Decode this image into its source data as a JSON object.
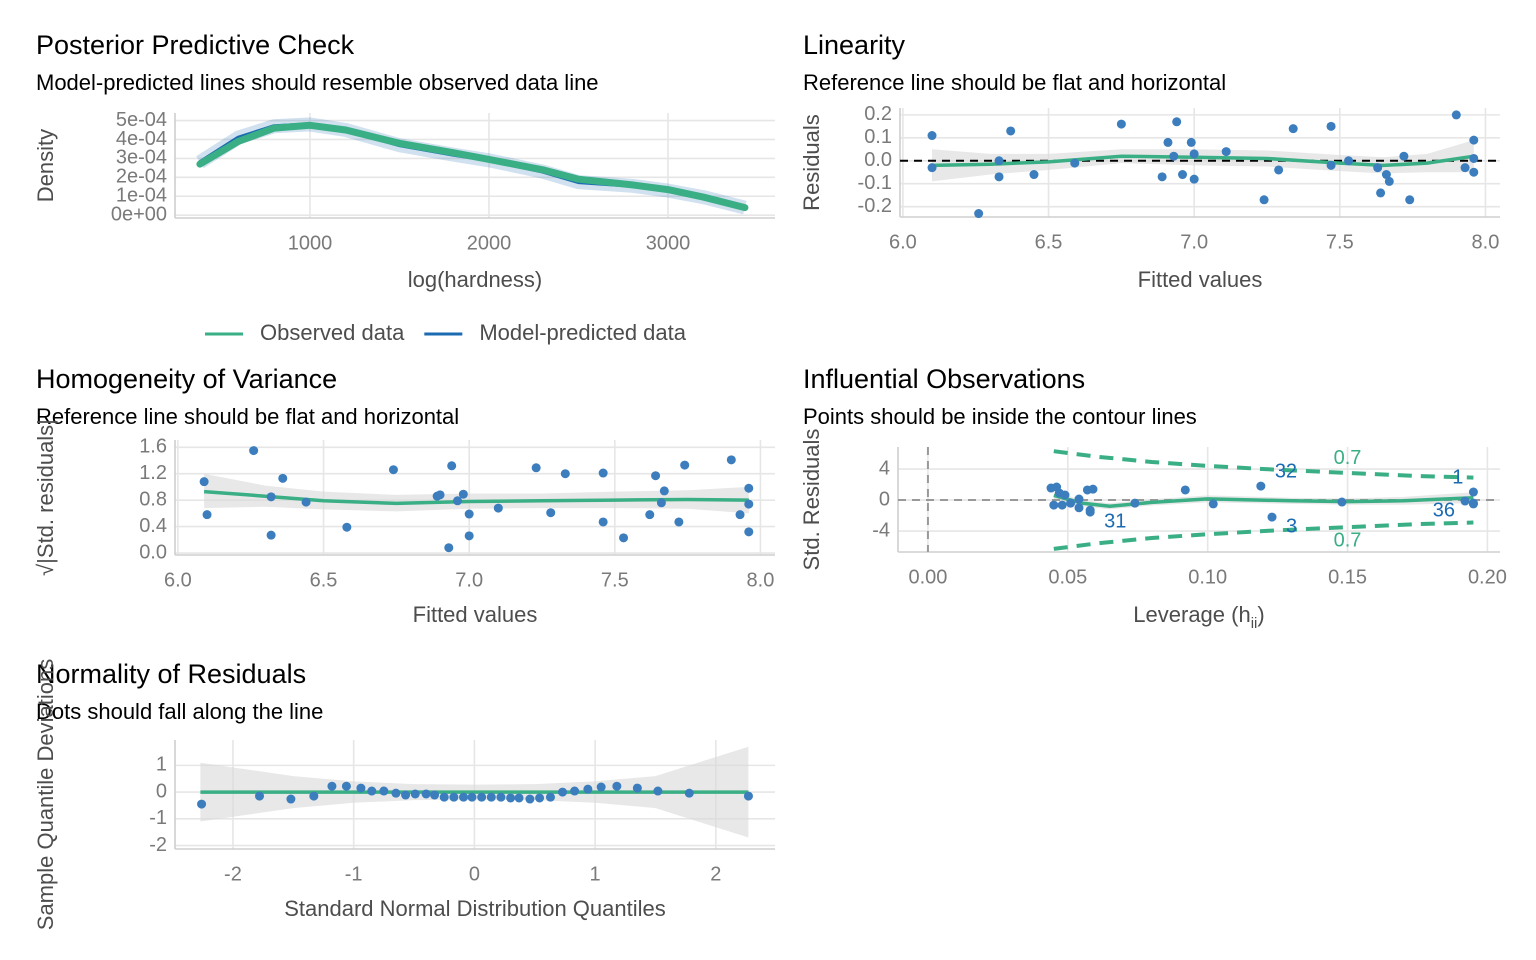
{
  "chart_data": [
    {
      "type": "line",
      "title": "Posterior Predictive Check",
      "subtitle": "Model-predicted lines should resemble observed data line",
      "x_label": "log(hardness)",
      "y_label": "Density",
      "x": [
        385,
        600,
        800,
        1000,
        1200,
        1500,
        1800,
        2000,
        2300,
        2500,
        2800,
        3000,
        3200,
        3430
      ],
      "series": [
        {
          "name": "Observed data",
          "color": "#3aaf85",
          "values": [
            0.00027,
            0.00039,
            0.00046,
            0.000475,
            0.00045,
            0.00038,
            0.00033,
            0.000295,
            0.00024,
            0.00019,
            0.00016,
            0.000135,
            9.5e-05,
            4e-05
          ]
        },
        {
          "name": "Model-predicted data",
          "color": "#1b6bb3",
          "values": [
            0.00028,
            0.00041,
            0.00047,
            0.00048,
            0.00045,
            0.00037,
            0.00032,
            0.00029,
            0.00023,
            0.000175,
            0.000155,
            0.00013,
            9.5e-05,
            4e-05
          ]
        }
      ],
      "xlim": [
        246,
        3598
      ],
      "ylim": [
        -1.5e-05,
        0.00054
      ],
      "xticks": [
        1000,
        2000,
        3000
      ],
      "yticks": [
        {
          "value": 0,
          "label": "0e+00"
        },
        {
          "value": 0.0001,
          "label": "1e-04"
        },
        {
          "value": 0.0002,
          "label": "2e-04"
        },
        {
          "value": 0.0003,
          "label": "3e-04"
        },
        {
          "value": 0.0004,
          "label": "4e-04"
        },
        {
          "value": 0.0005,
          "label": "5e-04"
        }
      ],
      "grid": true,
      "legend": "bottom"
    },
    {
      "type": "scatter",
      "title": "Linearity",
      "subtitle": "Reference line should be flat and horizontal",
      "x_label": "Fitted values",
      "y_label": "Residuals",
      "point_color": "#3b7dbd",
      "x": [
        6.1,
        6.1,
        6.26,
        6.33,
        6.33,
        6.37,
        6.45,
        6.59,
        6.75,
        6.89,
        6.91,
        6.94,
        6.93,
        6.96,
        6.99,
        7.0,
        7.0,
        7.11,
        7.24,
        7.29,
        7.34,
        7.47,
        7.47,
        7.53,
        7.63,
        7.64,
        7.66,
        7.67,
        7.72,
        7.74,
        7.9,
        7.93,
        7.96,
        7.96,
        7.96
      ],
      "values": [
        0.11,
        -0.03,
        -0.23,
        0.0,
        -0.07,
        0.13,
        -0.06,
        -0.01,
        0.16,
        -0.07,
        0.08,
        0.17,
        0.02,
        -0.06,
        0.08,
        -0.08,
        0.03,
        0.04,
        -0.17,
        -0.04,
        0.14,
        0.15,
        -0.02,
        0.0,
        -0.03,
        -0.14,
        -0.06,
        -0.09,
        0.02,
        -0.17,
        0.2,
        -0.03,
        0.09,
        -0.05,
        0.01
      ],
      "smooth": {
        "color": "#3aaf85",
        "x": [
          6.1,
          6.3,
          6.5,
          6.75,
          7.0,
          7.25,
          7.5,
          7.65,
          7.8,
          7.96
        ],
        "values": [
          -0.02,
          -0.015,
          -0.005,
          0.02,
          0.015,
          0.01,
          -0.01,
          -0.02,
          -0.01,
          0.02
        ],
        "lower": [
          -0.09,
          -0.06,
          -0.04,
          -0.01,
          -0.02,
          -0.025,
          -0.045,
          -0.055,
          -0.05,
          -0.05
        ],
        "upper": [
          0.05,
          0.03,
          0.03,
          0.05,
          0.05,
          0.045,
          0.025,
          0.015,
          0.03,
          0.09
        ]
      },
      "reference_line": 0,
      "reference_color": "#000000",
      "xlim": [
        5.99,
        8.05
      ],
      "ylim": [
        -0.245,
        0.23
      ],
      "xticks": [
        {
          "value": 6,
          "label": "6.0"
        },
        6.5,
        {
          "value": 7,
          "label": "7.0"
        },
        7.5,
        {
          "value": 8,
          "label": "8.0"
        }
      ],
      "yticks": [
        -0.2,
        -0.1,
        {
          "value": 0,
          "label": "0.0"
        },
        0.1,
        0.2
      ],
      "grid": true
    },
    {
      "type": "scatter",
      "title": "Homogeneity of Variance",
      "subtitle": "Reference line should be flat and horizontal",
      "x_label": "Fitted values",
      "y_label": "√|Std. residuals|",
      "point_color": "#3b7dbd",
      "x": [
        6.09,
        6.1,
        6.26,
        6.32,
        6.32,
        6.36,
        6.44,
        6.58,
        6.74,
        6.89,
        6.9,
        6.94,
        6.93,
        6.96,
        6.98,
        7.0,
        7.0,
        7.1,
        7.23,
        7.28,
        7.33,
        7.46,
        7.46,
        7.53,
        7.62,
        7.64,
        7.66,
        7.67,
        7.72,
        7.74,
        7.9,
        7.93,
        7.96,
        7.96,
        7.96
      ],
      "values": [
        1.08,
        0.58,
        1.55,
        0.85,
        0.27,
        1.13,
        0.77,
        0.39,
        1.26,
        0.86,
        0.88,
        1.32,
        0.08,
        0.79,
        0.89,
        0.26,
        0.59,
        0.68,
        1.29,
        0.61,
        1.2,
        1.21,
        0.47,
        0.23,
        0.58,
        1.17,
        0.76,
        0.94,
        0.47,
        1.33,
        1.41,
        0.58,
        0.32,
        0.98,
        0.74
      ],
      "smooth": {
        "color": "#3aaf85",
        "x": [
          6.09,
          6.3,
          6.5,
          6.75,
          7.0,
          7.25,
          7.5,
          7.75,
          7.96
        ],
        "values": [
          0.93,
          0.86,
          0.79,
          0.75,
          0.78,
          0.79,
          0.8,
          0.81,
          0.8
        ],
        "lower": [
          0.68,
          0.7,
          0.66,
          0.63,
          0.67,
          0.68,
          0.68,
          0.67,
          0.6
        ],
        "upper": [
          1.2,
          1.02,
          0.93,
          0.88,
          0.9,
          0.9,
          0.93,
          0.95,
          1.0
        ]
      },
      "xlim": [
        5.99,
        8.05
      ],
      "ylim": [
        -0.03,
        1.71
      ],
      "xticks": [
        {
          "value": 6,
          "label": "6.0"
        },
        6.5,
        {
          "value": 7,
          "label": "7.0"
        },
        7.5,
        {
          "value": 8,
          "label": "8.0"
        }
      ],
      "yticks": [
        {
          "value": 0,
          "label": "0.0"
        },
        0.4,
        0.8,
        1.2,
        1.6
      ],
      "grid": true
    },
    {
      "type": "scatter",
      "title": "Influential Observations",
      "subtitle": "Points should be inside the contour lines",
      "x_label": [
        "Leverage (h",
        "ii",
        ")"
      ],
      "y_label": "Std. Residuals",
      "point_color": "#3b7dbd",
      "x": [
        0.044,
        0.045,
        0.046,
        0.047,
        0.048,
        0.049,
        0.051,
        0.054,
        0.054,
        0.057,
        0.058,
        0.058,
        0.059,
        0.074,
        0.092,
        0.102,
        0.119,
        0.123,
        0.148,
        0.192,
        0.195,
        0.195,
        0.195
      ],
      "values": [
        1.55,
        -0.65,
        1.68,
        0.9,
        -0.65,
        0.65,
        -0.4,
        -1.0,
        0.13,
        1.3,
        -1.3,
        -1.55,
        1.4,
        -0.4,
        1.3,
        -0.5,
        1.8,
        -2.2,
        -0.26,
        -0.13,
        -0.4,
        1.03,
        -0.5
      ],
      "point_labels": [
        null,
        null,
        null,
        null,
        null,
        null,
        null,
        null,
        null,
        null,
        null,
        "31",
        null,
        null,
        null,
        null,
        "32",
        "3",
        null,
        "36",
        null,
        "1",
        null
      ],
      "label_color": "#1b6bb3",
      "contours": [
        {
          "label": "0.7",
          "x": [
            0.045,
            0.06,
            0.08,
            0.1,
            0.125,
            0.15,
            0.175,
            0.195
          ],
          "values": [
            6.3,
            5.6,
            4.9,
            4.4,
            3.9,
            3.5,
            3.1,
            2.9
          ]
        },
        {
          "label": "0.7",
          "x": [
            0.045,
            0.06,
            0.08,
            0.1,
            0.125,
            0.15,
            0.175,
            0.195
          ],
          "values": [
            -6.3,
            -5.6,
            -4.9,
            -4.4,
            -3.9,
            -3.5,
            -3.1,
            -2.9
          ]
        }
      ],
      "contour_color": "#3aaf85",
      "smooth": {
        "color": "#3aaf85",
        "x": [
          0.045,
          0.055,
          0.065,
          0.08,
          0.1,
          0.13,
          0.15,
          0.17,
          0.195
        ],
        "values": [
          0.6,
          -0.4,
          -0.8,
          -0.3,
          0.15,
          -0.1,
          -0.2,
          -0.1,
          0.3
        ],
        "lower": [
          0.1,
          -0.8,
          -1.2,
          -0.7,
          -0.3,
          -0.5,
          -0.6,
          -0.6,
          -0.4
        ],
        "upper": [
          1.1,
          0.0,
          -0.4,
          0.1,
          0.6,
          0.3,
          0.2,
          0.4,
          1.0
        ]
      },
      "reference_line": 0,
      "x_reference_line": 0,
      "reference_color": "#999999",
      "xlim": [
        -0.0107,
        0.2045
      ],
      "ylim": [
        -6.7,
        6.84
      ],
      "xticks": [
        {
          "value": 0,
          "label": "0.00"
        },
        0.05,
        {
          "value": 0.1,
          "label": "0.10"
        },
        0.15,
        {
          "value": 0.2,
          "label": "0.20"
        }
      ],
      "yticks": [
        -4,
        0,
        4
      ],
      "grid": true
    },
    {
      "type": "scatter",
      "title": "Normality of Residuals",
      "subtitle": "Dots should fall along the line",
      "x_label": "Standard Normal Distribution Quantiles",
      "y_label": "Sample Quantile Deviations",
      "point_color": "#3b7dbd",
      "x": [
        -2.26,
        -1.78,
        -1.52,
        -1.33,
        -1.18,
        -1.06,
        -0.94,
        -0.85,
        -0.75,
        -0.65,
        -0.57,
        -0.49,
        -0.4,
        -0.33,
        -0.25,
        -0.17,
        -0.09,
        -0.02,
        0.06,
        0.14,
        0.22,
        0.3,
        0.37,
        0.46,
        0.54,
        0.63,
        0.73,
        0.83,
        0.94,
        1.05,
        1.18,
        1.35,
        1.52,
        1.78,
        2.27
      ],
      "values": [
        -0.45,
        -0.15,
        -0.26,
        -0.15,
        0.22,
        0.22,
        0.15,
        0.04,
        0.04,
        -0.04,
        -0.11,
        -0.07,
        -0.07,
        -0.11,
        -0.19,
        -0.19,
        -0.19,
        -0.19,
        -0.19,
        -0.19,
        -0.19,
        -0.22,
        -0.22,
        -0.26,
        -0.22,
        -0.19,
        0,
        0.04,
        0.11,
        0.19,
        0.22,
        0.15,
        0.04,
        -0.04,
        -0.15
      ],
      "smooth": {
        "color": "#3aaf85",
        "x": [
          -2.27,
          -1.5,
          -1,
          -0.5,
          0,
          0.5,
          1,
          1.5,
          2.27
        ],
        "values": [
          0,
          0,
          0,
          0,
          0,
          0,
          0,
          0,
          0
        ],
        "lower": [
          -1.1,
          -0.6,
          -0.4,
          -0.3,
          -0.28,
          -0.3,
          -0.4,
          -0.6,
          -1.7
        ],
        "upper": [
          1.1,
          0.6,
          0.4,
          0.3,
          0.28,
          0.3,
          0.4,
          0.6,
          1.7
        ]
      },
      "xlim": [
        -2.48,
        2.49
      ],
      "ylim": [
        -2.13,
        1.95
      ],
      "xticks": [
        -2,
        -1,
        0,
        1,
        2
      ],
      "yticks": [
        -2,
        -1,
        0,
        1
      ],
      "grid": true
    }
  ]
}
